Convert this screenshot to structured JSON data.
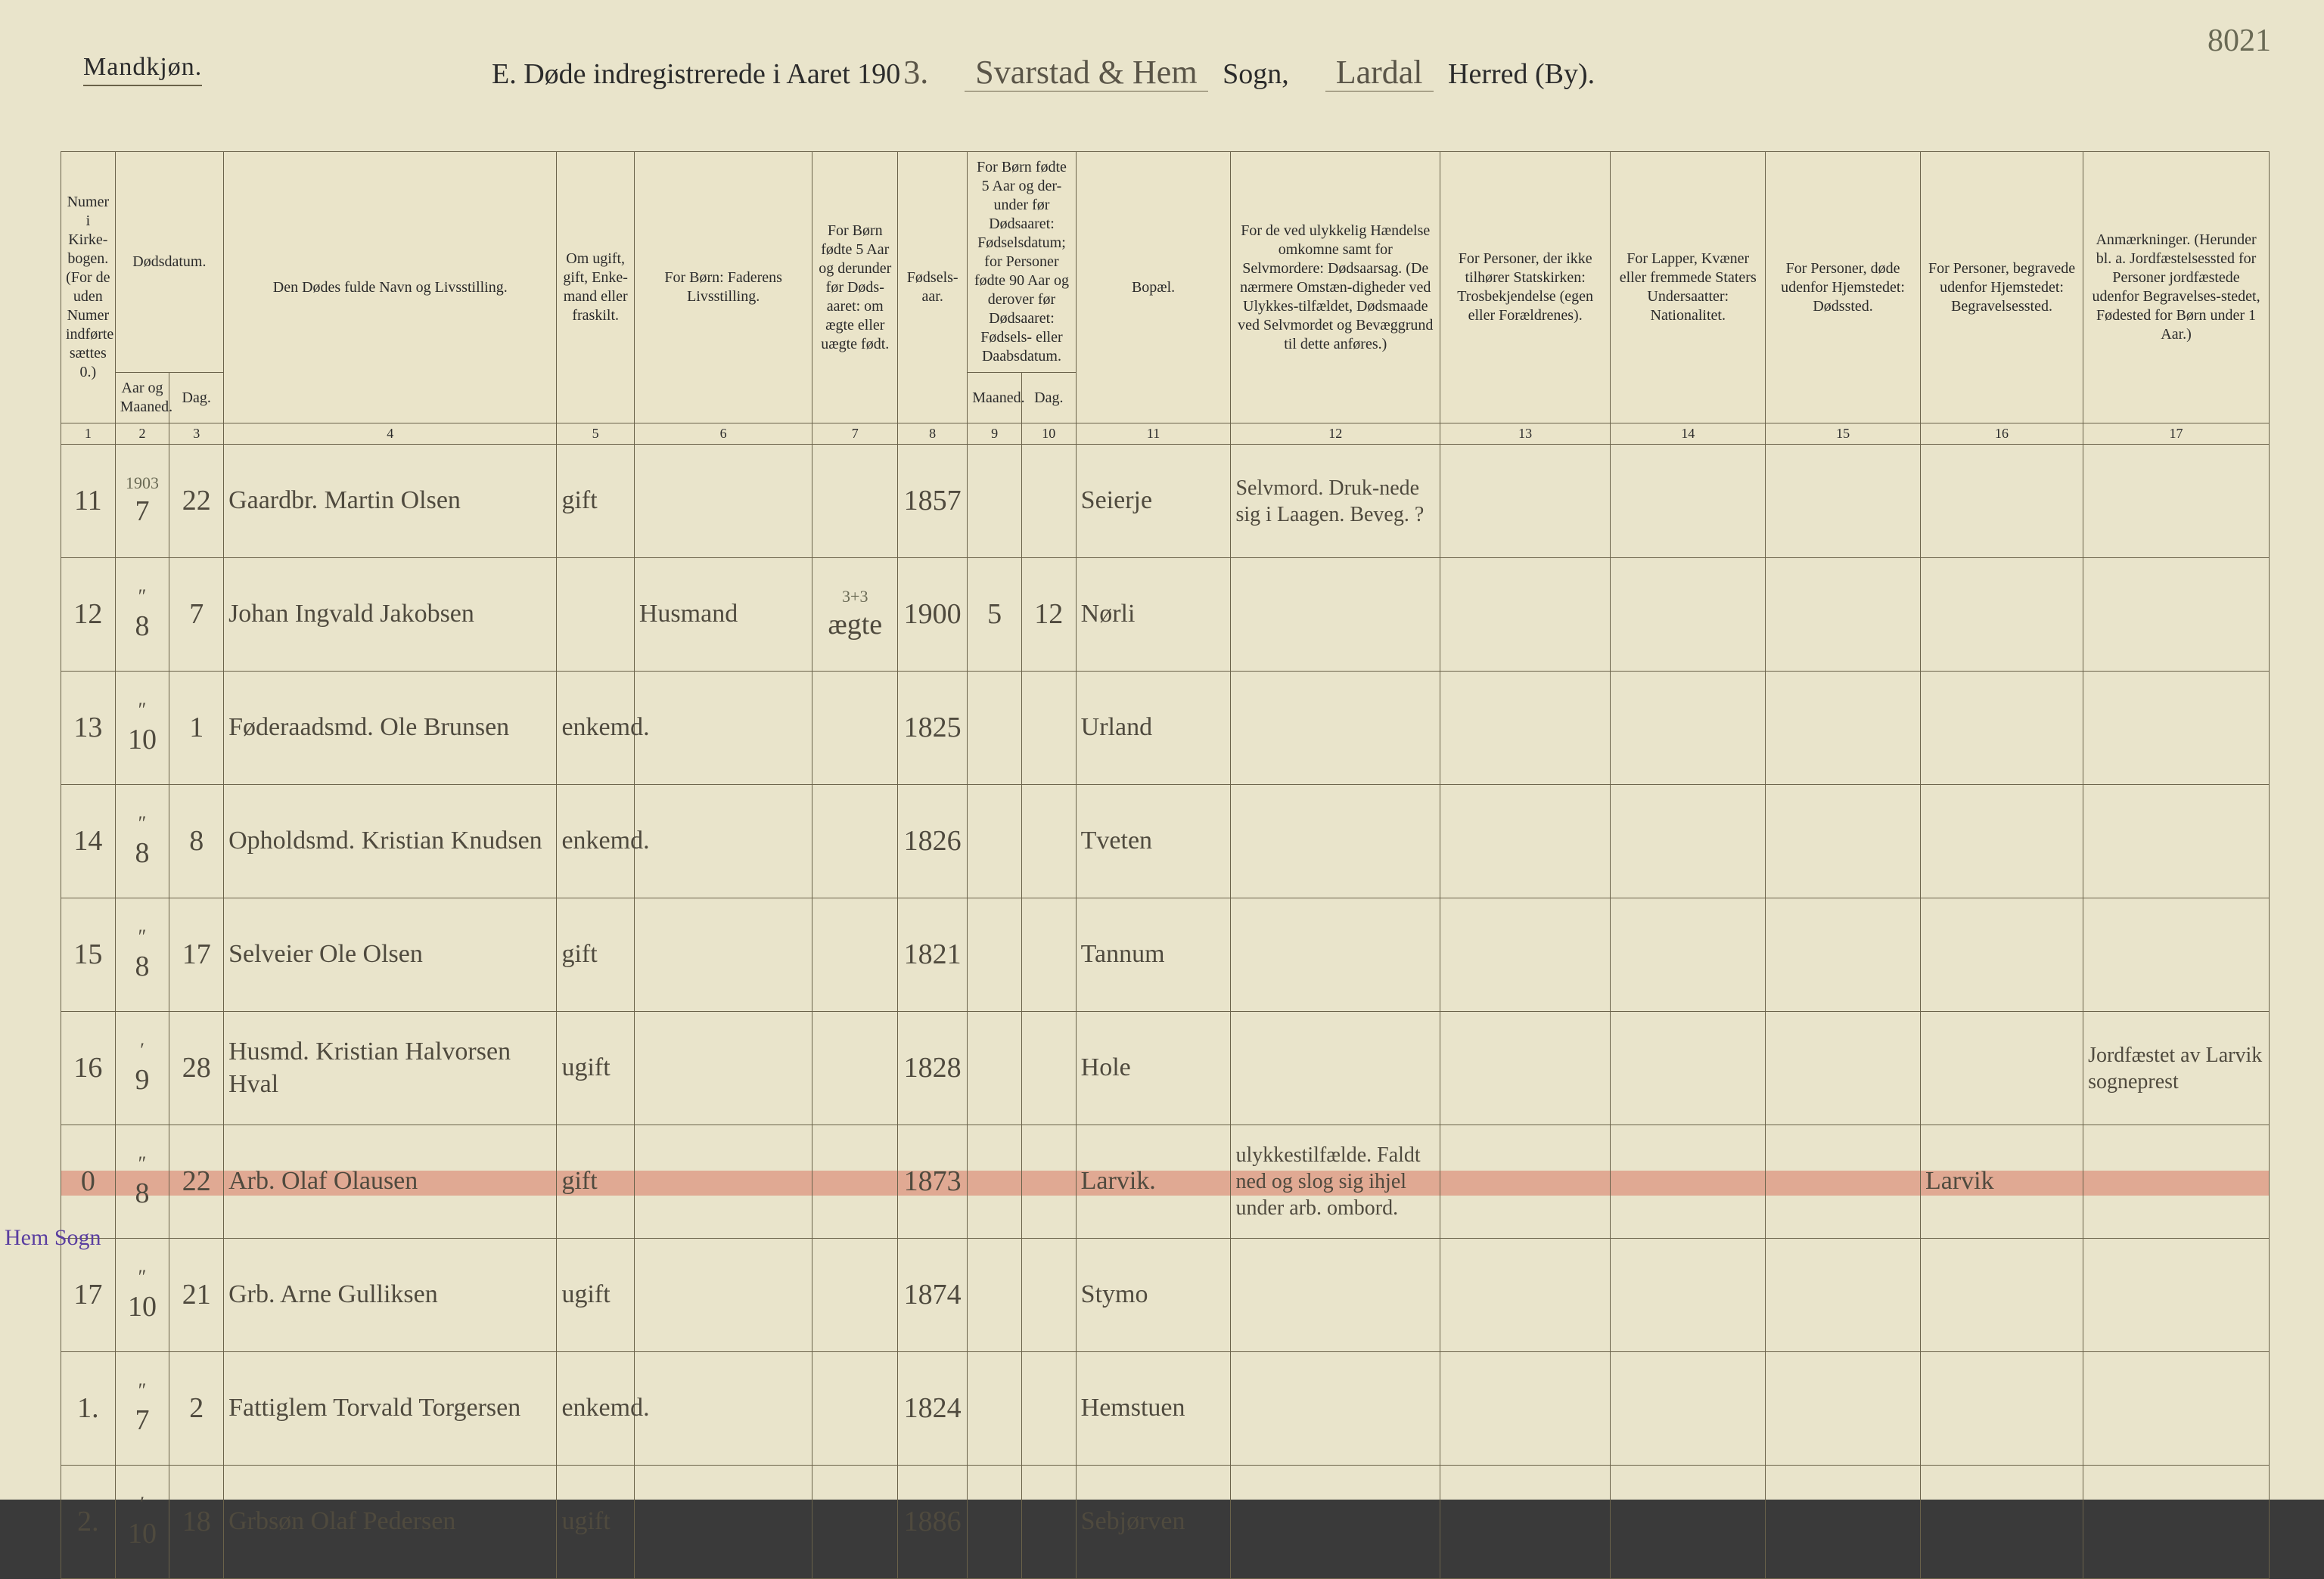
{
  "page_number": "8021",
  "gender_label": "Mandkjøn.",
  "title": {
    "prefix": "E.  Døde indregistrerede i Aaret 190",
    "year_suffix": "3.",
    "sogn_hand": "Svarstad & Hem",
    "sogn_label": "Sogn,",
    "herred_hand": "Lardal",
    "herred_label": "Herred (By)."
  },
  "col_headers": {
    "c1": "Numer i Kirke-bogen. (For de uden Numer indførte sættes 0.)",
    "c2a": "Dødsdatum.",
    "c2_sub_a": "Aar og Maaned.",
    "c2_sub_b": "Dag.",
    "c4": "Den Dødes fulde Navn og Livsstilling.",
    "c5": "Om ugift, gift, Enke-mand eller fraskilt.",
    "c6": "For Børn: Faderens Livsstilling.",
    "c7": "For Børn fødte 5 Aar og derunder før Døds-aaret: om ægte eller uægte født.",
    "c8": "Fødsels-aar.",
    "c9_10": "For Børn fødte 5 Aar og der-under før Dødsaaret: Fødselsdatum; for Personer fødte 90 Aar og derover før Dødsaaret: Fødsels- eller Daabsdatum.",
    "c9_sub": "Maaned.",
    "c10_sub": "Dag.",
    "c11": "Bopæl.",
    "c12": "For de ved ulykkelig Hændelse omkomne samt for Selvmordere: Dødsaarsag. (De nærmere Omstæn-digheder ved Ulykkes-tilfældet, Dødsmaade ved Selvmordet og Bevæggrund til dette anføres.)",
    "c13": "For Personer, der ikke tilhører Statskirken: Trosbekjendelse (egen eller Forældrenes).",
    "c14": "For Lapper, Kvæner eller fremmede Staters Undersaatter: Nationalitet.",
    "c15": "For Personer, døde udenfor Hjemstedet: Dødssted.",
    "c16": "For Personer, begravede udenfor Hjemstedet: Begravelsessted.",
    "c17": "Anmærkninger. (Herunder bl. a. Jordfæstelsessted for Personer jordfæstede udenfor Begravelses-stedet, Fødested for Børn under 1 Aar.)"
  },
  "col_numbers": [
    "1",
    "2",
    "3",
    "4",
    "5",
    "6",
    "7",
    "8",
    "9",
    "10",
    "11",
    "12",
    "13",
    "14",
    "15",
    "16",
    "17"
  ],
  "year_in_first_cell": "1903",
  "rows": [
    {
      "n": "11",
      "month": "7",
      "day": "22",
      "name": "Gaardbr. Martin Olsen",
      "status": "gift",
      "father": "",
      "legit": "",
      "birth_year": "1857",
      "fm": "",
      "fd": "",
      "residence": "Seierje",
      "cause": "Selvmord. Druk-nede sig i Laagen. Beveg. ?",
      "c13": "",
      "c14": "",
      "c15": "",
      "c16": "",
      "c17": ""
    },
    {
      "n": "12",
      "month": "8",
      "month_ditto": "″",
      "day": "7",
      "name": "Johan Ingvald Jakobsen",
      "status": "",
      "father": "Husmand",
      "legit": "ægte",
      "legit_sup": "3+3",
      "birth_year": "1900",
      "fm": "5",
      "fd": "12",
      "residence": "Nørli",
      "cause": "",
      "c13": "",
      "c14": "",
      "c15": "",
      "c16": "",
      "c17": ""
    },
    {
      "n": "13",
      "month": "10",
      "month_ditto": "″",
      "day": "1",
      "name": "Føderaadsmd. Ole Brunsen",
      "status": "enkemd.",
      "father": "",
      "legit": "",
      "birth_year": "1825",
      "fm": "",
      "fd": "",
      "residence": "Urland",
      "cause": "",
      "c13": "",
      "c14": "",
      "c15": "",
      "c16": "",
      "c17": ""
    },
    {
      "n": "14",
      "month": "8",
      "month_ditto": "″",
      "day": "8",
      "name": "Opholdsmd. Kristian Knudsen",
      "status": "enkemd.",
      "father": "",
      "legit": "",
      "birth_year": "1826",
      "fm": "",
      "fd": "",
      "residence": "Tveten",
      "cause": "",
      "c13": "",
      "c14": "",
      "c15": "",
      "c16": "",
      "c17": ""
    },
    {
      "n": "15",
      "month": "8",
      "month_ditto": "″",
      "day": "17",
      "name": "Selveier Ole Olsen",
      "status": "gift",
      "father": "",
      "legit": "",
      "birth_year": "1821",
      "fm": "",
      "fd": "",
      "residence": "Tannum",
      "cause": "",
      "c13": "",
      "c14": "",
      "c15": "",
      "c16": "",
      "c17": ""
    },
    {
      "n": "16",
      "month": "9",
      "month_ditto": "′",
      "day": "28",
      "name": "Husmd. Kristian Halvorsen Hval",
      "status": "ugift",
      "father": "",
      "legit": "",
      "birth_year": "1828",
      "fm": "",
      "fd": "",
      "residence": "Hole",
      "cause": "",
      "c13": "",
      "c14": "",
      "c15": "",
      "c16": "",
      "c17": "Jordfæstet av Larvik sogneprest"
    },
    {
      "n": "0",
      "month": "8",
      "month_ditto": "″",
      "day": "22",
      "name": "Arb. Olaf Olausen",
      "status": "gift",
      "father": "",
      "legit": "",
      "birth_year": "1873",
      "fm": "",
      "fd": "",
      "residence": "Larvik.",
      "cause": "ulykkestilfælde. Faldt ned og slog sig ihjel under arb. ombord.",
      "c13": "",
      "c14": "",
      "c15": "",
      "c16": "Larvik",
      "c17": "",
      "highlight": true
    },
    {
      "n": "17",
      "month": "10",
      "month_ditto": "″",
      "day": "21",
      "name": "Grb. Arne Gulliksen",
      "status": "ugift",
      "father": "",
      "legit": "",
      "birth_year": "1874",
      "fm": "",
      "fd": "",
      "residence": "Stymo",
      "cause": "",
      "c13": "",
      "c14": "",
      "c15": "",
      "c16": "",
      "c17": ""
    },
    {
      "n": "1.",
      "side_note": "Hem Sogn",
      "month": "7",
      "month_ditto": "″",
      "day": "2",
      "name": "Fattiglem Torvald Torgersen",
      "status": "enkemd.",
      "father": "",
      "legit": "",
      "birth_year": "1824",
      "fm": "",
      "fd": "",
      "residence": "Hemstuen",
      "cause": "",
      "c13": "",
      "c14": "",
      "c15": "",
      "c16": "",
      "c17": ""
    },
    {
      "n": "2.",
      "month": "10",
      "month_ditto": "′",
      "day": "18",
      "name": "Grbsøn Olaf Pedersen",
      "status": "ugift",
      "father": "",
      "legit": "",
      "birth_year": "1886",
      "fm": "",
      "fd": "",
      "residence": "Sebjørven",
      "cause": "",
      "c13": "",
      "c14": "",
      "c15": "",
      "c16": "",
      "c17": ""
    }
  ],
  "colors": {
    "paper": "#e9e4cb",
    "rule": "#6a624a",
    "ink": "#4f4a3e",
    "highlight": "rgba(217,120,100,0.55)",
    "violet_note": "#5a3ea0"
  }
}
